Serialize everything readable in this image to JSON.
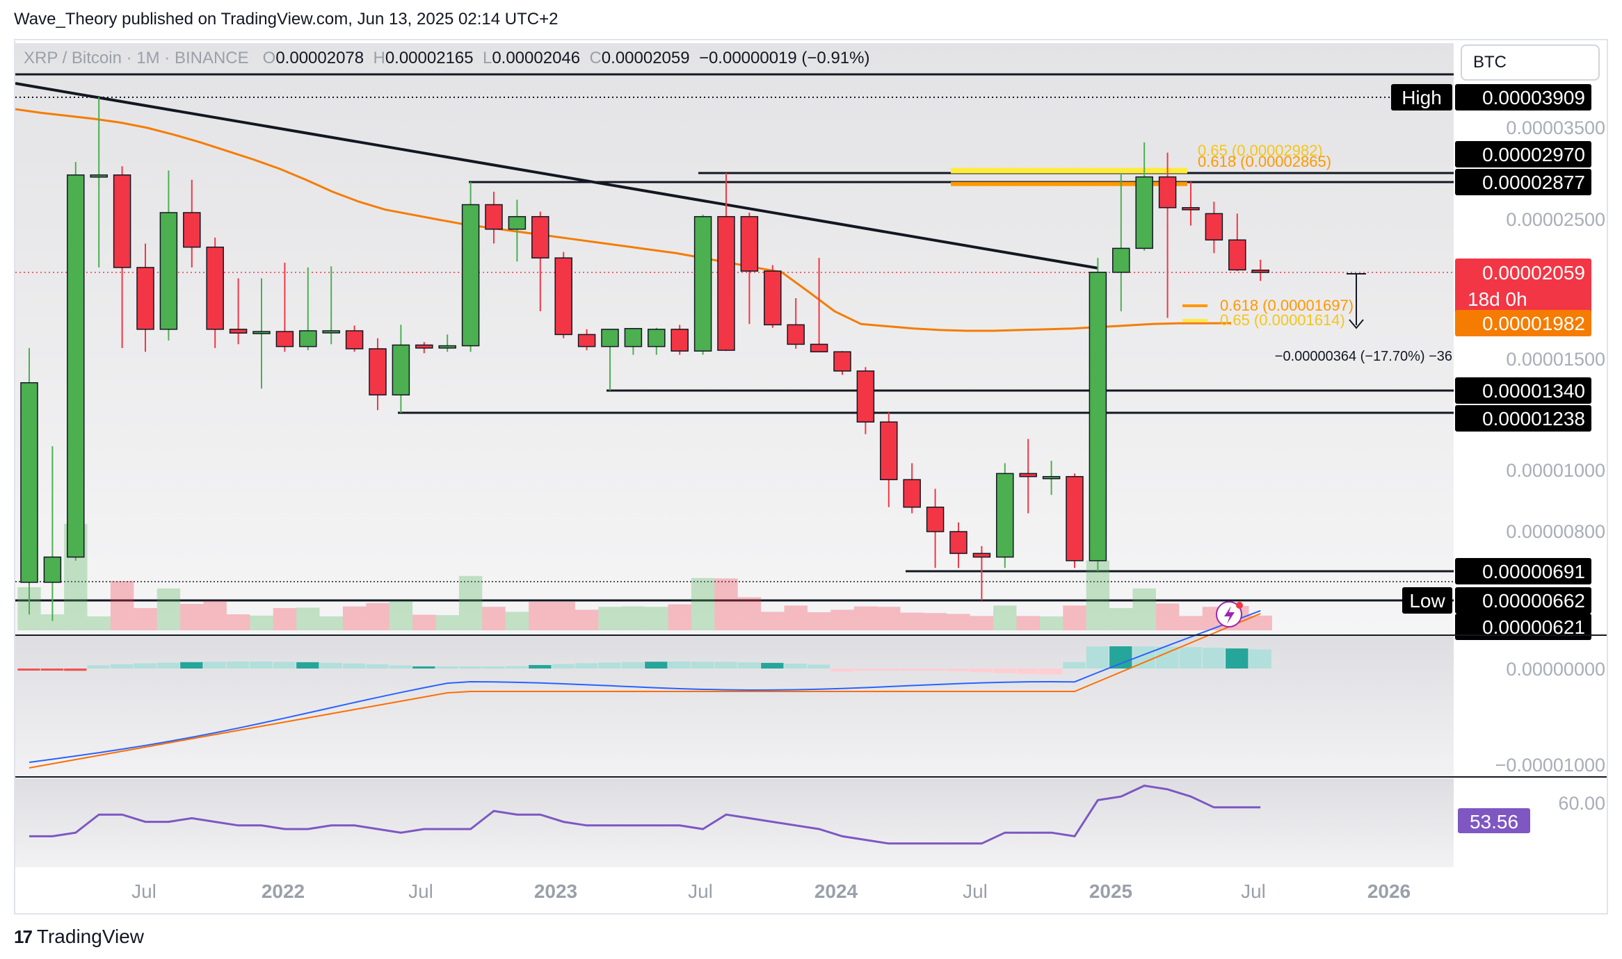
{
  "header": {
    "published": "Wave_Theory published on TradingView.com, Jun 13, 2025 02:14 UTC+2"
  },
  "legend": {
    "symbol": "XRP / Bitcoin · 1M · BINANCE",
    "o_label": "O",
    "o": "0.00002078",
    "h_label": "H",
    "h": "0.00002165",
    "l_label": "L",
    "l": "0.00002046",
    "c_label": "C",
    "c": "0.00002059",
    "change": "−0.00000019 (−0.91%)"
  },
  "currency": "BTC",
  "footer": {
    "brand": "TradingView",
    "logo": "17"
  },
  "colors": {
    "up": "#4caf50",
    "down": "#f23645",
    "ema": "#f57c00",
    "macd": "#2962ff",
    "signal": "#ff6d00",
    "rsi": "#7e57c2",
    "fib_yellow": "#ffeb3b",
    "fib_orange": "#ff9800"
  },
  "chart_data": {
    "type": "candlestick",
    "title": "XRP / Bitcoin · 1M · BINANCE",
    "price_axis": {
      "ticks": [
        "0.00003500",
        "0.00002500",
        "0.00001500",
        "0.00001000",
        "0.00000800"
      ],
      "labels": [
        {
          "text": "High",
          "value": "0.00003909",
          "style": "black"
        },
        {
          "text": "",
          "value": "0.00002970",
          "style": "black"
        },
        {
          "text": "",
          "value": "0.00002877",
          "style": "black"
        },
        {
          "text": "",
          "value": "0.00002059",
          "style": "red",
          "sub": "18d 0h"
        },
        {
          "text": "",
          "value": "0.00001982",
          "style": "orange"
        },
        {
          "text": "",
          "value": "0.00001340",
          "style": "black"
        },
        {
          "text": "",
          "value": "0.00001238",
          "style": "black"
        },
        {
          "text": "",
          "value": "0.00000691",
          "style": "black"
        },
        {
          "text": "Low",
          "value": "0.00000662",
          "style": "black"
        },
        {
          "text": "",
          "value": "0.00000621",
          "style": "black"
        }
      ]
    },
    "time_axis": [
      "Jul",
      "2022",
      "Jul",
      "2023",
      "Jul",
      "2024",
      "Jul",
      "2025",
      "Jul",
      "2026"
    ],
    "candles": [
      {
        "date": "2021-01",
        "o": 6.8e-06,
        "h": 1.65e-05,
        "l": 6.4e-06,
        "c": 1.38e-05
      },
      {
        "date": "2021-02",
        "o": 6.8e-06,
        "h": 1.1e-05,
        "l": 6.3e-06,
        "c": 7.3e-06
      },
      {
        "date": "2021-03",
        "o": 7.3e-06,
        "h": 3.1e-05,
        "l": 7.2e-06,
        "c": 2.95e-05
      },
      {
        "date": "2021-04",
        "o": 2.95e-05,
        "h": 3.909e-05,
        "l": 2.1e-05,
        "c": 2.95e-05
      },
      {
        "date": "2021-05",
        "o": 2.95e-05,
        "h": 3.05e-05,
        "l": 1.65e-05,
        "c": 2.1e-05
      },
      {
        "date": "2021-06",
        "o": 2.1e-05,
        "h": 2.3e-05,
        "l": 1.6e-05,
        "c": 1.9e-05
      },
      {
        "date": "2021-07",
        "o": 1.9e-05,
        "h": 3e-05,
        "l": 1.75e-05,
        "c": 2.57e-05
      },
      {
        "date": "2021-08",
        "o": 2.57e-05,
        "h": 2.9e-05,
        "l": 2.1e-05,
        "c": 2.27e-05
      },
      {
        "date": "2021-09",
        "o": 2.27e-05,
        "h": 2.35e-05,
        "l": 1.65e-05,
        "c": 1.9e-05
      },
      {
        "date": "2021-10",
        "o": 1.9e-05,
        "h": 2.05e-05,
        "l": 1.7e-05,
        "c": 1.85e-05
      },
      {
        "date": "2021-11",
        "o": 1.85e-05,
        "h": 2.05e-05,
        "l": 1.35e-05,
        "c": 1.87e-05
      },
      {
        "date": "2021-12",
        "o": 1.87e-05,
        "h": 2.14e-05,
        "l": 1.6e-05,
        "c": 1.67e-05
      },
      {
        "date": "2022-01",
        "o": 1.67e-05,
        "h": 2.1e-05,
        "l": 1.62e-05,
        "c": 1.88e-05
      },
      {
        "date": "2022-02",
        "o": 1.88e-05,
        "h": 2.11e-05,
        "l": 1.7e-05,
        "c": 1.88e-05
      },
      {
        "date": "2022-03",
        "o": 1.88e-05,
        "h": 1.95e-05,
        "l": 1.6e-05,
        "c": 1.64e-05
      },
      {
        "date": "2022-04",
        "o": 1.64e-05,
        "h": 1.78e-05,
        "l": 1.25e-05,
        "c": 1.32e-05
      },
      {
        "date": "2022-05",
        "o": 1.32e-05,
        "h": 1.96e-05,
        "l": 1.238e-05,
        "c": 1.69e-05
      },
      {
        "date": "2022-06",
        "o": 1.69e-05,
        "h": 1.73e-05,
        "l": 1.58e-05,
        "c": 1.65e-05
      },
      {
        "date": "2022-07",
        "o": 1.65e-05,
        "h": 1.83e-05,
        "l": 1.6e-05,
        "c": 1.68e-05
      },
      {
        "date": "2022-08",
        "o": 1.68e-05,
        "h": 2.877e-05,
        "l": 1.6e-05,
        "c": 2.65e-05
      },
      {
        "date": "2022-09",
        "o": 2.65e-05,
        "h": 2.78e-05,
        "l": 2.3e-05,
        "c": 2.42e-05
      },
      {
        "date": "2022-10",
        "o": 2.42e-05,
        "h": 2.7e-05,
        "l": 2.15e-05,
        "c": 2.53e-05
      },
      {
        "date": "2022-11",
        "o": 2.53e-05,
        "h": 2.58e-05,
        "l": 2e-05,
        "c": 2.18e-05
      },
      {
        "date": "2022-12",
        "o": 2.18e-05,
        "h": 2.23e-05,
        "l": 1.78e-05,
        "c": 1.83e-05
      },
      {
        "date": "2023-01",
        "o": 1.83e-05,
        "h": 1.9e-05,
        "l": 1.62e-05,
        "c": 1.67e-05
      },
      {
        "date": "2023-02",
        "o": 1.67e-05,
        "h": 1.9e-05,
        "l": 1.34e-05,
        "c": 1.9e-05
      },
      {
        "date": "2023-03",
        "o": 1.67e-05,
        "h": 1.9e-05,
        "l": 1.56e-05,
        "c": 1.91e-05
      },
      {
        "date": "2023-04",
        "o": 1.67e-05,
        "h": 1.92e-05,
        "l": 1.56e-05,
        "c": 1.9e-05
      },
      {
        "date": "2023-05",
        "o": 1.9e-05,
        "h": 1.96e-05,
        "l": 1.56e-05,
        "c": 1.61e-05
      },
      {
        "date": "2023-06",
        "o": 1.61e-05,
        "h": 2.55e-05,
        "l": 1.56e-05,
        "c": 2.53e-05
      },
      {
        "date": "2023-07",
        "o": 2.53e-05,
        "h": 2.97e-05,
        "l": 1.61e-05,
        "c": 1.62e-05
      },
      {
        "date": "2023-08",
        "o": 2.53e-05,
        "h": 2.57e-05,
        "l": 1.97e-05,
        "c": 2.07e-05
      },
      {
        "date": "2023-09",
        "o": 2.07e-05,
        "h": 2.12e-05,
        "l": 1.92e-05,
        "c": 1.96e-05
      },
      {
        "date": "2023-10",
        "o": 1.96e-05,
        "h": 2.02e-05,
        "l": 1.64e-05,
        "c": 1.7e-05
      },
      {
        "date": "2023-11",
        "o": 1.7e-05,
        "h": 2.18e-05,
        "l": 1.62e-05,
        "c": 1.6e-05
      },
      {
        "date": "2023-12",
        "o": 1.6e-05,
        "h": 1.61e-05,
        "l": 1.42e-05,
        "c": 1.44e-05
      },
      {
        "date": "2024-01",
        "o": 1.44e-05,
        "h": 1.46e-05,
        "l": 1.15e-05,
        "c": 1.2e-05
      },
      {
        "date": "2024-02",
        "o": 1.2e-05,
        "h": 1.24e-05,
        "l": 8.8e-06,
        "c": 9.7e-06
      },
      {
        "date": "2024-03",
        "o": 9.7e-06,
        "h": 1.03e-05,
        "l": 8.6e-06,
        "c": 8.8e-06
      },
      {
        "date": "2024-04",
        "o": 8.8e-06,
        "h": 9.4e-06,
        "l": 7e-06,
        "c": 8e-06
      },
      {
        "date": "2024-05",
        "o": 8e-06,
        "h": 8.3e-06,
        "l": 7e-06,
        "c": 7.4e-06
      },
      {
        "date": "2024-06",
        "o": 7.4e-06,
        "h": 7.6e-06,
        "l": 6.62e-06,
        "c": 7.3e-06
      },
      {
        "date": "2024-07",
        "o": 7.3e-06,
        "h": 1.03e-05,
        "l": 7e-06,
        "c": 9.9e-06
      },
      {
        "date": "2024-08",
        "o": 9.9e-06,
        "h": 1.13e-05,
        "l": 8.6e-06,
        "c": 9.8e-06
      },
      {
        "date": "2024-09",
        "o": 9.8e-06,
        "h": 1.04e-05,
        "l": 9.2e-06,
        "c": 9.8e-06
      },
      {
        "date": "2024-10",
        "o": 9.8e-06,
        "h": 9.9e-06,
        "l": 7e-06,
        "c": 7.2e-06
      },
      {
        "date": "2024-11",
        "o": 7.2e-06,
        "h": 2.18e-05,
        "l": 6.91e-06,
        "c": 2.06e-05
      },
      {
        "date": "2024-12",
        "o": 2.06e-05,
        "h": 2.97e-05,
        "l": 2e-05,
        "c": 2.26e-05
      },
      {
        "date": "2025-01",
        "o": 2.26e-05,
        "h": 3.33e-05,
        "l": 2.24e-05,
        "c": 2.93e-05
      },
      {
        "date": "2025-02",
        "o": 2.93e-05,
        "h": 3.21e-05,
        "l": 1.99e-05,
        "c": 2.62e-05
      },
      {
        "date": "2025-03",
        "o": 2.62e-05,
        "h": 2.88e-05,
        "l": 2.45e-05,
        "c": 2.61e-05
      },
      {
        "date": "2025-04",
        "o": 2.56e-05,
        "h": 2.68e-05,
        "l": 2.22e-05,
        "c": 2.33e-05
      },
      {
        "date": "2025-05",
        "o": 2.33e-05,
        "h": 2.56e-05,
        "l": 2.07e-05,
        "c": 2.08e-05
      },
      {
        "date": "2025-06",
        "o": 2.078e-05,
        "h": 2.165e-05,
        "l": 2.046e-05,
        "c": 2.059e-05
      }
    ],
    "ema": [
      3.75e-05,
      3.7e-05,
      3.66e-05,
      3.62e-05,
      3.57e-05,
      3.5e-05,
      3.42e-05,
      3.33e-05,
      3.23e-05,
      3.13e-05,
      3.02e-05,
      2.9e-05,
      2.78e-05,
      2.68e-05,
      2.6e-05,
      2.55e-05,
      2.5e-05,
      2.46e-05,
      2.43e-05,
      2.4e-05,
      2.37e-05,
      2.34e-05,
      2.31e-05,
      2.28e-05,
      2.25e-05,
      2.22e-05,
      2.18e-05,
      2.14e-05,
      2.1e-05,
      2.06e-05,
      2.03e-05,
      2e-05,
      1.97e-05,
      1.94e-05,
      1.91e-05,
      1.89e-05,
      1.88e-05,
      1.88e-05,
      1.89e-05,
      1.9e-05,
      1.91e-05,
      1.93e-05,
      1.95e-05,
      1.97e-05,
      1.98e-05,
      1.98e-05,
      1.982e-05
    ],
    "fibonacci": [
      {
        "label": "0.65 (0.00002982)",
        "value": 2.982e-05,
        "color": "yellow"
      },
      {
        "label": "0.618 (0.00002865)",
        "value": 2.865e-05,
        "color": "orange"
      },
      {
        "label": "0.618 (0.00001697)",
        "value": 1.697e-05,
        "color": "orange"
      },
      {
        "label": "0.65 (0.00001614)",
        "value": 1.614e-05,
        "color": "yellow"
      }
    ],
    "measure_label": "−0.00000364 (−17.70%) −36",
    "macd": {
      "axis": [
        "0.00000000",
        "−0.00001000"
      ]
    },
    "rsi": {
      "axis": [
        "60.00"
      ],
      "value": "53.56"
    }
  }
}
